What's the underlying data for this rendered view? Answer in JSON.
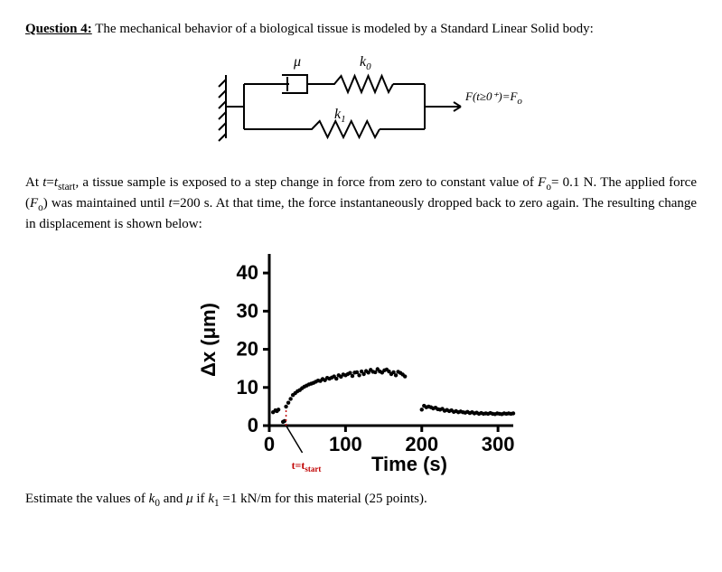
{
  "question": {
    "label": "Question 4:",
    "intro": "The mechanical behavior of a biological tissue is modeled by a Standard Linear Solid body:"
  },
  "diagram": {
    "mu_label": "μ",
    "k0_label": "k",
    "k0_sub": "0",
    "k1_label": "k",
    "k1_sub": "1",
    "force_label": "F(t≥0⁺)=F",
    "force_sub": "o",
    "stroke": "#000000",
    "stroke_width": 2
  },
  "paragraph": {
    "p1a": "At ",
    "p1b": "t",
    "p1c": "=",
    "p1d": "t",
    "p1e": "start",
    "p1f": ", a tissue sample is exposed to a step change in force from zero to constant value of ",
    "p1g": "F",
    "p1h": "o",
    "p1i": "= 0.1 N. The applied force (",
    "p1j": "F",
    "p1k": "o",
    "p1l": ") was maintained until ",
    "p1m": "t",
    "p1n": "=200 s. At that time, the force instantaneously dropped back to zero again. The resulting change in displacement is shown below:"
  },
  "chart": {
    "ylabel": "Δx (μm)",
    "xlabel": "Time (s)",
    "yticks": [
      0,
      10,
      20,
      30,
      40
    ],
    "xticks": [
      0,
      100,
      200,
      300
    ],
    "ylim": [
      0,
      45
    ],
    "xlim": [
      0,
      320
    ],
    "axis_color": "#000000",
    "axis_width": 3,
    "tick_fontsize": 22,
    "label_fontsize": 22,
    "point_color": "#000000",
    "point_radius": 2.2,
    "tstart_label": "t=t",
    "tstart_sub": "start",
    "tstart_color": "#c00000",
    "tstart_x": 22,
    "line_tstart_color": "#c00000",
    "red_dash": "2,3",
    "data_points": [
      [
        0,
        0
      ],
      [
        5,
        3.5
      ],
      [
        8,
        4
      ],
      [
        10,
        3.8
      ],
      [
        12,
        4.2
      ],
      [
        18,
        1
      ],
      [
        20,
        1.2
      ],
      [
        22,
        5
      ],
      [
        25,
        6
      ],
      [
        28,
        7
      ],
      [
        31,
        8
      ],
      [
        34,
        8.5
      ],
      [
        37,
        9
      ],
      [
        40,
        9.3
      ],
      [
        43,
        9.8
      ],
      [
        46,
        10.2
      ],
      [
        49,
        10.5
      ],
      [
        52,
        10.8
      ],
      [
        55,
        11
      ],
      [
        58,
        11.2
      ],
      [
        61,
        11.5
      ],
      [
        64,
        11.8
      ],
      [
        67,
        11.7
      ],
      [
        70,
        12.2
      ],
      [
        73,
        11.9
      ],
      [
        76,
        12.5
      ],
      [
        79,
        12.3
      ],
      [
        82,
        12.6
      ],
      [
        85,
        12.9
      ],
      [
        88,
        12.3
      ],
      [
        91,
        13.2
      ],
      [
        94,
        12.8
      ],
      [
        97,
        13.4
      ],
      [
        100,
        13.2
      ],
      [
        103,
        13.5
      ],
      [
        106,
        13.8
      ],
      [
        109,
        13
      ],
      [
        112,
        13.9
      ],
      [
        115,
        14
      ],
      [
        118,
        13.2
      ],
      [
        121,
        14.2
      ],
      [
        124,
        13.5
      ],
      [
        127,
        14.3
      ],
      [
        130,
        13.9
      ],
      [
        133,
        14.6
      ],
      [
        136,
        14.1
      ],
      [
        139,
        14
      ],
      [
        142,
        14.8
      ],
      [
        145,
        14.2
      ],
      [
        148,
        13.9
      ],
      [
        151,
        14.5
      ],
      [
        154,
        14.7
      ],
      [
        157,
        14.2
      ],
      [
        160,
        13.5
      ],
      [
        163,
        14
      ],
      [
        166,
        13.2
      ],
      [
        169,
        14.1
      ],
      [
        172,
        13.8
      ],
      [
        175,
        13.4
      ],
      [
        178,
        12.9
      ],
      [
        200,
        4.2
      ],
      [
        203,
        5.2
      ],
      [
        206,
        4.8
      ],
      [
        209,
        5
      ],
      [
        212,
        4.8
      ],
      [
        215,
        4.5
      ],
      [
        218,
        4.7
      ],
      [
        221,
        4.3
      ],
      [
        224,
        4.2
      ],
      [
        227,
        4.4
      ],
      [
        230,
        3.9
      ],
      [
        233,
        4.1
      ],
      [
        236,
        3.8
      ],
      [
        239,
        4
      ],
      [
        242,
        3.6
      ],
      [
        245,
        3.8
      ],
      [
        248,
        3.5
      ],
      [
        251,
        3.7
      ],
      [
        254,
        3.5
      ],
      [
        257,
        3.4
      ],
      [
        260,
        3.6
      ],
      [
        263,
        3.3
      ],
      [
        266,
        3.5
      ],
      [
        269,
        3.2
      ],
      [
        272,
        3.4
      ],
      [
        275,
        3.1
      ],
      [
        278,
        3.3
      ],
      [
        281,
        3.1
      ],
      [
        284,
        3.2
      ],
      [
        287,
        3.1
      ],
      [
        290,
        3.3
      ],
      [
        293,
        3.1
      ],
      [
        296,
        3
      ],
      [
        299,
        3.2
      ],
      [
        302,
        3.1
      ],
      [
        305,
        3
      ],
      [
        308,
        3.2
      ],
      [
        311,
        3.1
      ],
      [
        314,
        3.2
      ],
      [
        317,
        3.1
      ],
      [
        320,
        3.2
      ]
    ]
  },
  "final": {
    "a": "Estimate the values of ",
    "b": "k",
    "c": "0",
    "d": " and ",
    "e": "μ",
    "f": " if ",
    "g": "k",
    "h": "1",
    "i": " =1 kN/m for this material (25 points)."
  }
}
